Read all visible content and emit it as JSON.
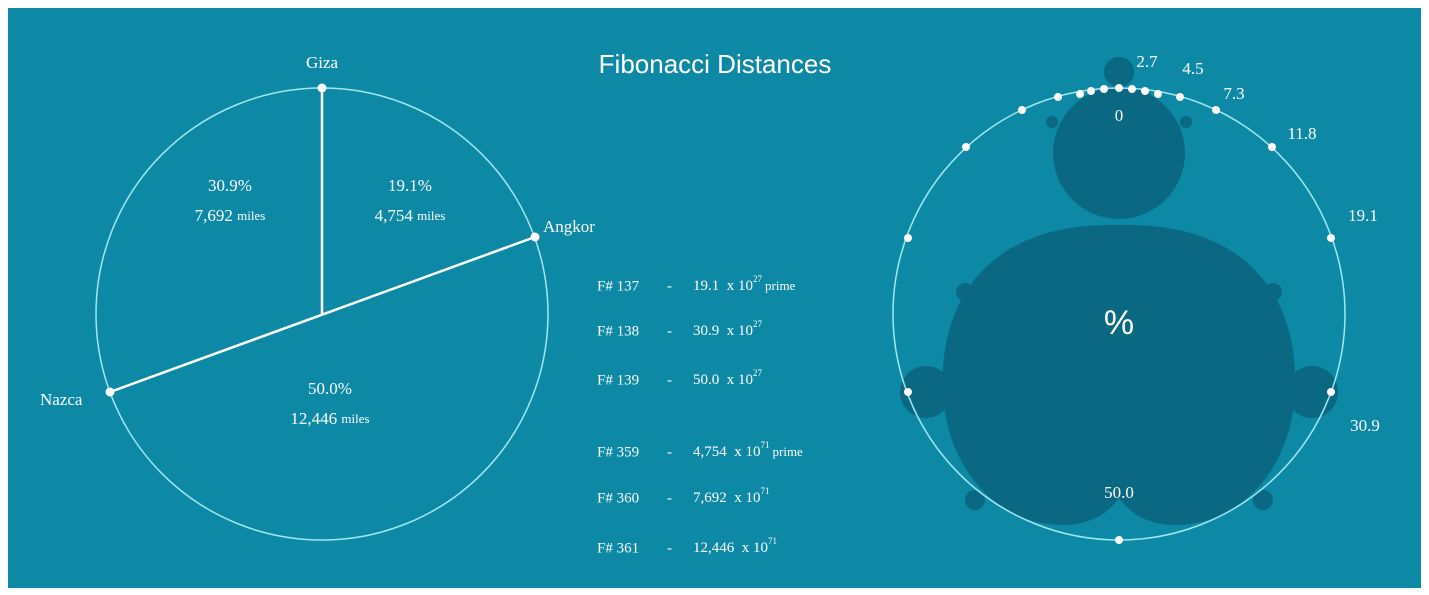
{
  "title": "Fibonacci Distances",
  "pie": {
    "points": [
      {
        "label": "Giza"
      },
      {
        "label": "Angkor"
      },
      {
        "label": "Nazca"
      }
    ],
    "segments": [
      {
        "percent": "30.9%",
        "distance": "7,692",
        "unit": "miles"
      },
      {
        "percent": "19.1%",
        "distance": "4,754",
        "unit": "miles"
      },
      {
        "percent": "50.0%",
        "distance": "12,446",
        "unit": "miles"
      }
    ]
  },
  "fibonacci_list": [
    {
      "index": "F# 137",
      "separator": "-",
      "mantissa": "19.1",
      "times": "x 10",
      "exponent": "27",
      "note": "prime"
    },
    {
      "index": "F# 138",
      "separator": "-",
      "mantissa": "30.9",
      "times": "x 10",
      "exponent": "27"
    },
    {
      "index": "F# 139",
      "separator": "-",
      "mantissa": "50.0",
      "times": "x 10",
      "exponent": "27"
    },
    {
      "index": "F# 359",
      "separator": "-",
      "mantissa": "4,754",
      "times": "x 10",
      "exponent": "71",
      "note": "prime"
    },
    {
      "index": "F# 360",
      "separator": "-",
      "mantissa": "7,692",
      "times": "x 10",
      "exponent": "71"
    },
    {
      "index": "F# 361",
      "separator": "-",
      "mantissa": "12,446",
      "times": "x 10",
      "exponent": "71"
    }
  ],
  "fractal": {
    "center_label": "0",
    "symbol": "%",
    "labels": [
      "2.7",
      "4.5",
      "7.3",
      "11.8",
      "19.1",
      "30.9",
      "50.0"
    ]
  }
}
